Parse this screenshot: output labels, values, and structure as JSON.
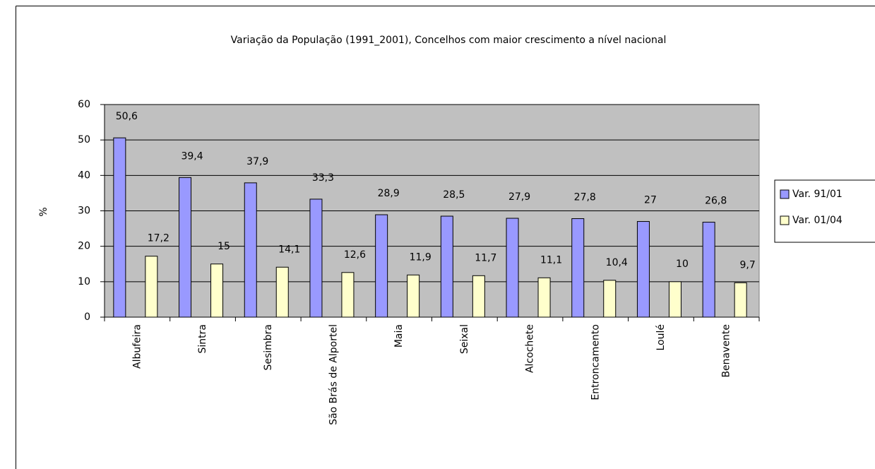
{
  "chart_data": {
    "type": "bar",
    "title": "Variação da População (1991_2001),  Concelhos com maior crescimento a nível nacional",
    "y_label": "%",
    "categories": [
      "Albufeira",
      "Sintra",
      "Sesimbra",
      "São Brás de Alportel",
      "Maia",
      "Seixal",
      "Alcochete",
      "Entroncamento",
      "Loulé",
      "Benavente"
    ],
    "series": [
      {
        "name": "Var. 91/01",
        "color": "#9999ff",
        "values": [
          50.6,
          39.4,
          37.9,
          33.3,
          28.9,
          28.5,
          27.9,
          27.8,
          27,
          26.8
        ],
        "value_labels": [
          "50,6",
          "39,4",
          "37,9",
          "33,3",
          "28,9",
          "28,5",
          "27,9",
          "27,8",
          "27",
          "26,8"
        ]
      },
      {
        "name": "Var. 01/04",
        "color": "#ffffcc",
        "values": [
          17.2,
          15,
          14.1,
          12.6,
          11.9,
          11.7,
          11.1,
          10.4,
          10,
          9.7
        ],
        "value_labels": [
          "17,2",
          "15",
          "14,1",
          "12,6",
          "11,9",
          "11,7",
          "11,1",
          "10,4",
          "10",
          "9,7"
        ]
      }
    ],
    "ylim": [
      0,
      60
    ],
    "yticks": [
      0,
      10,
      20,
      30,
      40,
      50,
      60
    ],
    "grid": true,
    "plot_background": "#c0c0c0",
    "legend": "right"
  }
}
